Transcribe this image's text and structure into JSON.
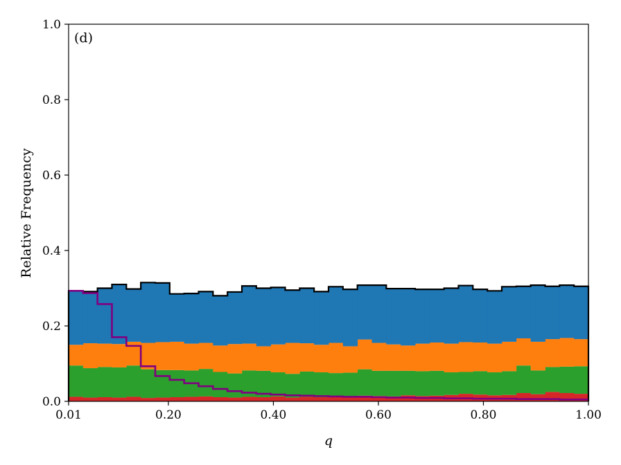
{
  "chart_data": {
    "type": "bar",
    "stacked": true,
    "panel_label": "(d)",
    "xlabel": "q",
    "ylabel": "Relative Frequency",
    "xlim": [
      0.01,
      1.0
    ],
    "ylim": [
      0.0,
      1.0
    ],
    "x_ticks": [
      0.01,
      0.2,
      0.4,
      0.6,
      0.8,
      1.0
    ],
    "x_tick_labels": [
      "0.01",
      "0.20",
      "0.40",
      "0.60",
      "0.80",
      "1.00"
    ],
    "y_ticks": [
      0.0,
      0.2,
      0.4,
      0.6,
      0.8,
      1.0
    ],
    "y_tick_labels": [
      "0.0",
      "0.2",
      "0.4",
      "0.6",
      "0.8",
      "1.0"
    ],
    "grid": false,
    "bins": 36,
    "series": [
      {
        "color": "#d62728",
        "values": [
          0.012,
          0.01,
          0.011,
          0.01,
          0.012,
          0.009,
          0.01,
          0.011,
          0.012,
          0.013,
          0.011,
          0.01,
          0.012,
          0.011,
          0.013,
          0.01,
          0.012,
          0.011,
          0.013,
          0.012,
          0.015,
          0.014,
          0.013,
          0.016,
          0.014,
          0.015,
          0.017,
          0.02,
          0.018,
          0.016,
          0.017,
          0.022,
          0.019,
          0.025,
          0.022,
          0.02
        ]
      },
      {
        "color": "#2ca02c",
        "values": [
          0.083,
          0.078,
          0.08,
          0.08,
          0.083,
          0.076,
          0.073,
          0.072,
          0.07,
          0.073,
          0.067,
          0.064,
          0.07,
          0.07,
          0.064,
          0.063,
          0.067,
          0.066,
          0.062,
          0.064,
          0.07,
          0.067,
          0.068,
          0.065,
          0.066,
          0.066,
          0.06,
          0.058,
          0.062,
          0.061,
          0.063,
          0.073,
          0.063,
          0.066,
          0.07,
          0.073
        ]
      },
      {
        "color": "#ff7f0e",
        "values": [
          0.055,
          0.066,
          0.062,
          0.062,
          0.063,
          0.07,
          0.074,
          0.075,
          0.071,
          0.069,
          0.07,
          0.078,
          0.071,
          0.065,
          0.074,
          0.082,
          0.075,
          0.073,
          0.08,
          0.07,
          0.079,
          0.074,
          0.07,
          0.067,
          0.073,
          0.075,
          0.076,
          0.079,
          0.076,
          0.076,
          0.078,
          0.072,
          0.076,
          0.074,
          0.076,
          0.072
        ]
      },
      {
        "color": "#1f77b4",
        "values": [
          0.143,
          0.137,
          0.147,
          0.158,
          0.14,
          0.16,
          0.157,
          0.127,
          0.133,
          0.136,
          0.132,
          0.138,
          0.153,
          0.154,
          0.151,
          0.14,
          0.146,
          0.141,
          0.149,
          0.151,
          0.144,
          0.153,
          0.148,
          0.151,
          0.144,
          0.141,
          0.147,
          0.15,
          0.141,
          0.14,
          0.146,
          0.138,
          0.15,
          0.14,
          0.14,
          0.14
        ]
      }
    ],
    "total_outline": {
      "color": "#000000",
      "values": [
        0.293,
        0.291,
        0.3,
        0.31,
        0.298,
        0.315,
        0.314,
        0.285,
        0.286,
        0.291,
        0.28,
        0.29,
        0.306,
        0.3,
        0.302,
        0.295,
        0.3,
        0.291,
        0.304,
        0.297,
        0.308,
        0.308,
        0.299,
        0.299,
        0.297,
        0.297,
        0.3,
        0.307,
        0.297,
        0.293,
        0.304,
        0.305,
        0.308,
        0.305,
        0.308,
        0.305
      ]
    },
    "overlay_step": {
      "color": "#800080",
      "values": [
        0.293,
        0.287,
        0.258,
        0.17,
        0.147,
        0.093,
        0.067,
        0.057,
        0.048,
        0.04,
        0.033,
        0.027,
        0.023,
        0.02,
        0.018,
        0.016,
        0.015,
        0.014,
        0.013,
        0.012,
        0.012,
        0.011,
        0.01,
        0.01,
        0.009,
        0.009,
        0.008,
        0.008,
        0.007,
        0.007,
        0.007,
        0.006,
        0.006,
        0.006,
        0.005,
        0.005
      ]
    }
  }
}
